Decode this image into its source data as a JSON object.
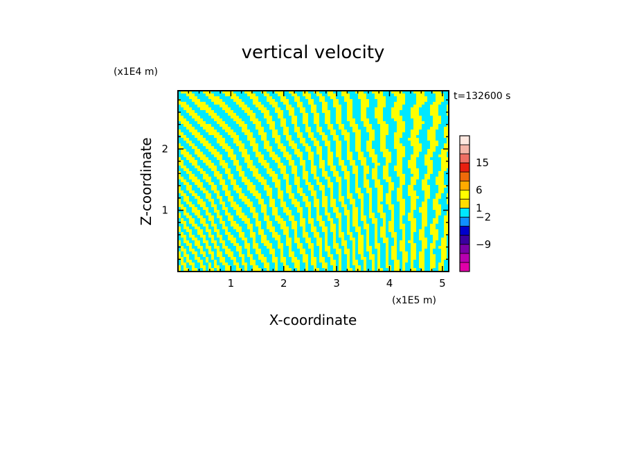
{
  "chart_data": {
    "type": "heatmap",
    "title": "vertical velocity",
    "xlabel": "X-coordinate",
    "ylabel": "Z-coordinate",
    "x_unit": "(x1E5 m)",
    "y_unit": "(x1E4 m)",
    "time_label": "t=132600 s",
    "xlim": [
      0,
      5.12
    ],
    "ylim": [
      0,
      2.95
    ],
    "x_ticks": [
      1,
      2,
      3,
      4,
      5
    ],
    "y_ticks": [
      1,
      2
    ],
    "colorbar": {
      "labeled_ticks": [
        {
          "value": 15,
          "label": "15"
        },
        {
          "value": 6,
          "label": "6"
        },
        {
          "value": 1,
          "label": "1"
        },
        {
          "value": -2,
          "label": "−2"
        },
        {
          "value": -9,
          "label": "−9"
        }
      ],
      "bins_top_to_bottom": [
        "#ffe8e0",
        "#f5b5a8",
        "#ef6e63",
        "#e81f10",
        "#ee6a0a",
        "#ffaa00",
        "#ffff00",
        "#ffdd00",
        "#00e8ff",
        "#1090ff",
        "#0000cc",
        "#3a00a0",
        "#7a00a8",
        "#b800b0",
        "#e000a8"
      ]
    },
    "field_colors": {
      "positive": "#ffff00",
      "negative": "#00e8ff"
    }
  }
}
